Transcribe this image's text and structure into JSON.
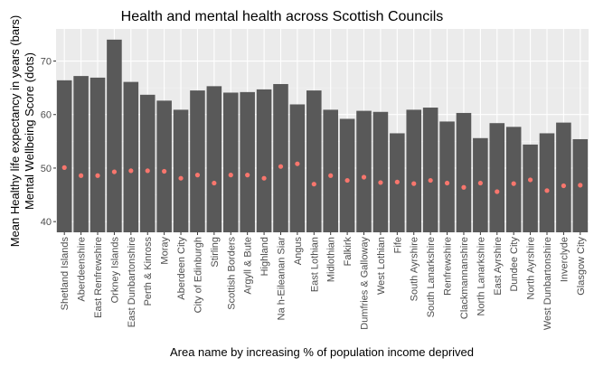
{
  "chart_data": {
    "type": "bar",
    "title": "Health and mental health across Scottish Councils",
    "xlabel": "Area name by increasing % of population income deprived",
    "ylabel_lines": [
      "Mean Healthy life expectancy in years (bars)",
      "Mental Wellbeing Score (dots)"
    ],
    "ylim": [
      38,
      76
    ],
    "yticks": [
      40,
      50,
      60,
      70
    ],
    "grid": true,
    "colors": {
      "panel": "#ebebeb",
      "grid_major": "#ffffff",
      "grid_minor": "#f5f5f5",
      "bar": "#595959",
      "dot": "#f8766d"
    },
    "categories": [
      "Shetland Islands",
      "Aberdeenshire",
      "East Renfrewshire",
      "Orkney Islands",
      "East Dunbartonshire",
      "Perth & Kinross",
      "Moray",
      "Aberdeen City",
      "City of Edinburgh",
      "Stirling",
      "Scottish Borders",
      "Argyll & Bute",
      "Highland",
      "Na h-Eileanan Siar",
      "Angus",
      "East Lothian",
      "Midlothian",
      "Falkirk",
      "Dumfries & Galloway",
      "West Lothian",
      "Fife",
      "South Ayrshire",
      "South Lanarkshire",
      "Renfrewshire",
      "Clackmannanshire",
      "North Lanarkshire",
      "East Ayrshire",
      "Dundee City",
      "North Ayrshire",
      "West Dunbartonshire",
      "Inverclyde",
      "Glasgow City"
    ],
    "series": [
      {
        "kind": "bar",
        "values": [
          66.4,
          67.2,
          66.9,
          74.0,
          66.1,
          63.7,
          62.6,
          60.9,
          64.5,
          65.3,
          64.1,
          64.2,
          64.7,
          65.7,
          61.9,
          64.5,
          60.9,
          59.2,
          60.7,
          60.5,
          56.5,
          60.9,
          61.3,
          58.7,
          60.3,
          55.6,
          58.4,
          57.7,
          54.4,
          56.5,
          58.5,
          55.4
        ]
      },
      {
        "kind": "dot",
        "values": [
          50.1,
          48.6,
          48.6,
          49.3,
          49.5,
          49.5,
          49.4,
          48.1,
          48.7,
          47.2,
          48.7,
          48.7,
          48.1,
          50.3,
          50.8,
          47.0,
          48.6,
          47.7,
          48.3,
          47.3,
          47.4,
          47.1,
          47.7,
          47.2,
          46.4,
          47.2,
          45.6,
          47.1,
          47.8,
          45.8,
          46.7,
          46.8
        ]
      }
    ]
  }
}
